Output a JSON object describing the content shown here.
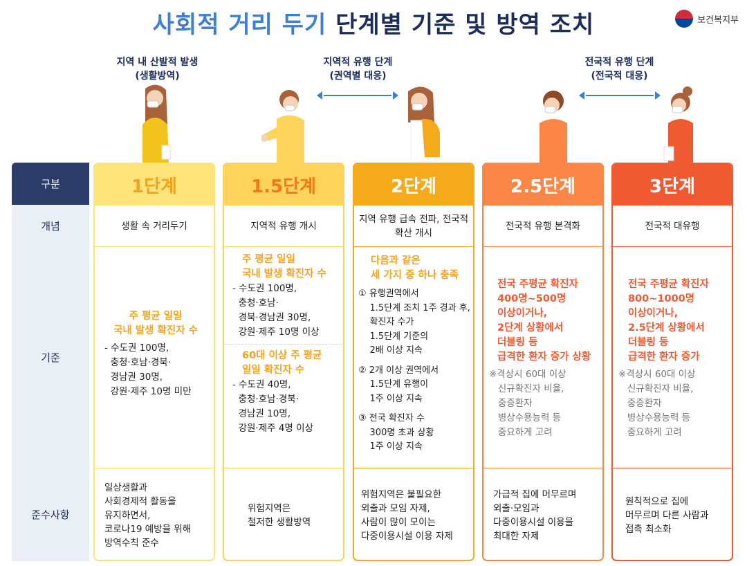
{
  "header": {
    "title_part1": "사회적 거리 두기",
    "title_part2": "단계별 기준 및 방역 조치",
    "ministry": "보건복지부"
  },
  "captions": {
    "local": [
      "지역 내 산발적 발생",
      "(생활방역)"
    ],
    "regional": [
      "지역적 유행 단계",
      "(권역별 대응)"
    ],
    "national": [
      "전국적 유행 단계",
      "(전국적 대응)"
    ]
  },
  "row_headers": [
    "구분",
    "개념",
    "기준",
    "준수사항"
  ],
  "colors": {
    "header_bg": "#2b3c69",
    "stage1": "#fde47a",
    "stage1_5": "#fdd35c",
    "stage2": "#f5aa1c",
    "stage2_5": "#fa8746",
    "stage3": "#f05a32"
  },
  "stages": [
    {
      "label": "1단계",
      "concept": "생활 속 거리두기",
      "criteria": {
        "highlight": "주 평균 일일\n국내 발생 확진자 수",
        "detail": "- 수도권 100명,\n  충청·호남·경북·\n  경남권 30명,\n  강원·제주 10명 미만"
      },
      "comply": "일상생활과\n사회경제적 활동을\n유지하면서,\n코로나19 예방을 위해\n방역수칙 준수"
    },
    {
      "label": "1.5단계",
      "concept": "지역적 유행 개시",
      "criteria": {
        "highlight": "주 평균 일일\n국내 발생 확진자 수",
        "detail": "- 수도권 100명,\n  충청·호남·\n  경북·경남권 30명,\n  강원·제주 10명 이상",
        "highlight2": "60대 이상 주 평균\n일일 확진자 수",
        "detail2": "- 수도권 40명,\n  충청·호남·경북·\n  경남권 10명,\n  강원·제주 4명 이상"
      },
      "comply": "위험지역은\n철저한 생활방역"
    },
    {
      "label": "2단계",
      "concept": "지역 유행 급속 전파,\n전국적 확산 개시",
      "criteria": {
        "highlight": "다음과 같은\n세 가지 중 하나 충족",
        "items": [
          "① 유행권역에서\n    1.5단계 조치 1주 경과 후,\n    확진자 수가\n    1.5단계 기준의\n    2배 이상 지속",
          "② 2개 이상 권역에서\n    1.5단계 유행이\n    1주 이상 지속",
          "③ 전국 확진자 수\n    300명 초과 상황\n    1주 이상 지속"
        ]
      },
      "comply": "위험지역은 불필요한\n외출과 모임 자제,\n사람이 많이 모이는\n다중이용시설 이용 자제"
    },
    {
      "label": "2.5단계",
      "concept": "전국적 유행 본격화",
      "criteria": {
        "highlight": "전국 주평균 확진자\n400명~500명\n이상이거나,\n2단계 상황에서\n더블링 등\n급격한 환자 증가 상황",
        "note": "※격상시 60대 이상\n   신규확진자 비율,\n   중증환자\n   병상수용능력 등\n   중요하게 고려"
      },
      "comply": "가급적 집에 머무르며\n외출·모임과\n다중이용시설 이용을\n최대한 자제"
    },
    {
      "label": "3단계",
      "concept": "전국적 대유행",
      "criteria": {
        "highlight": "전국 주평균 확진자\n800~1000명\n이상이거나,\n2.5단계 상황에서\n더블링 등\n급격한 환자 증가",
        "note": "※격상시 60대 이상\n   신규확진자 비율,\n   중증환자\n   병상수용능력 등\n   중요하게 고려"
      },
      "comply": "원칙적으로 집에\n머무르며 다른 사람과\n접촉 최소화"
    }
  ]
}
